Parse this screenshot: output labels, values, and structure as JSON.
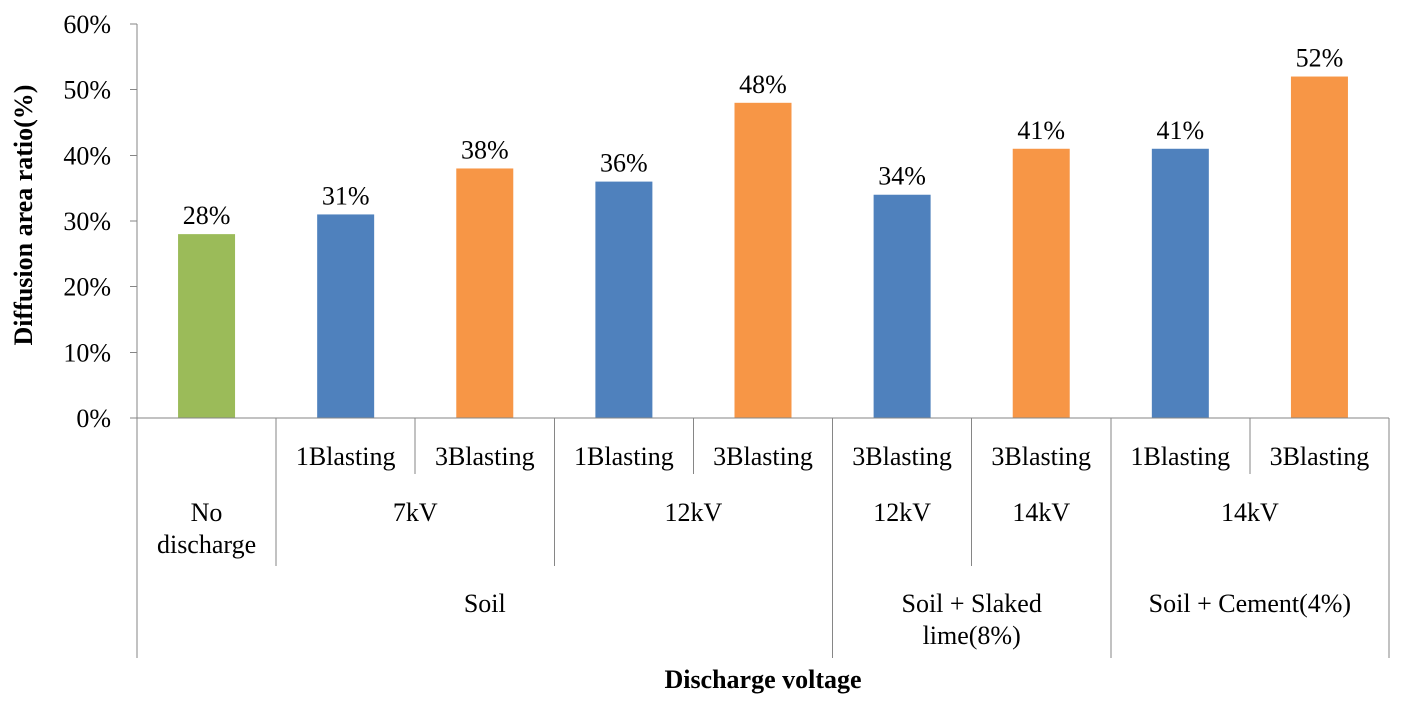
{
  "chart_data": {
    "type": "bar",
    "ylabel": "Diffusion area ratio(%)",
    "xlabel": "Discharge voltage",
    "ylim": [
      0,
      60
    ],
    "yticks": [
      "0%",
      "10%",
      "20%",
      "30%",
      "40%",
      "50%",
      "60%"
    ],
    "grid": false,
    "legend": "none",
    "categories": [
      {
        "level1": "",
        "level2": "No discharge",
        "level3": "Soil"
      },
      {
        "level1": "1Blasting",
        "level2": "7kV",
        "level3": "Soil"
      },
      {
        "level1": "3Blasting",
        "level2": "7kV",
        "level3": "Soil"
      },
      {
        "level1": "1Blasting",
        "level2": "12kV",
        "level3": "Soil"
      },
      {
        "level1": "3Blasting",
        "level2": "12kV",
        "level3": "Soil"
      },
      {
        "level1": "3Blasting",
        "level2": "12kV",
        "level3": "Soil + Slaked lime(8%)"
      },
      {
        "level1": "3Blasting",
        "level2": "14kV",
        "level3": "Soil + Slaked lime(8%)"
      },
      {
        "level1": "1Blasting",
        "level2": "14kV",
        "level3": "Soil + Cement(4%)"
      },
      {
        "level1": "3Blasting",
        "level2": "14kV",
        "level3": "Soil + Cement(4%)"
      }
    ],
    "values": [
      28,
      31,
      38,
      36,
      48,
      34,
      41,
      41,
      52
    ],
    "data_labels": [
      "28%",
      "31%",
      "38%",
      "36%",
      "48%",
      "34%",
      "41%",
      "41%",
      "52%"
    ],
    "bar_colors": [
      "#9BBB59",
      "#4F81BD",
      "#F79646",
      "#4F81BD",
      "#F79646",
      "#4F81BD",
      "#F79646",
      "#4F81BD",
      "#F79646"
    ],
    "level2_groups": [
      {
        "label": [
          "No",
          "discharge"
        ],
        "span": 1
      },
      {
        "label": [
          "7kV"
        ],
        "span": 2
      },
      {
        "label": [
          "12kV"
        ],
        "span": 2
      },
      {
        "label": [
          "12kV"
        ],
        "span": 1
      },
      {
        "label": [
          "14kV"
        ],
        "span": 1
      },
      {
        "label": [
          "14kV"
        ],
        "span": 2
      }
    ],
    "level3_groups": [
      {
        "label": [
          "Soil"
        ],
        "span": 5
      },
      {
        "label": [
          "Soil + Slaked",
          "lime(8%)"
        ],
        "span": 2
      },
      {
        "label": [
          "Soil + Cement(4%)"
        ],
        "span": 2
      }
    ]
  }
}
